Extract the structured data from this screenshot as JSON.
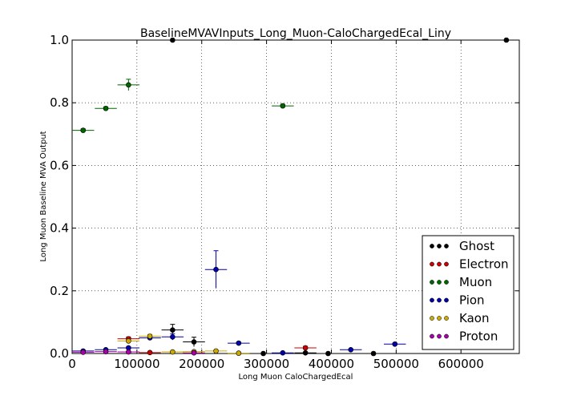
{
  "chart_data": {
    "type": "scatter",
    "title": "BaselineMVAVInputs_Long_Muon-CaloChargedEcal_Liny",
    "xlabel": "Long Muon CaloChargedEcal",
    "ylabel": "Long Muon Baseline MVA Output",
    "xlim": [
      0,
      690000
    ],
    "ylim": [
      0,
      1.0
    ],
    "xticks": [
      0,
      100000,
      200000,
      300000,
      400000,
      500000,
      600000
    ],
    "xtick_labels": [
      "0",
      "100000",
      "200000",
      "300000",
      "400000",
      "500000",
      "600000"
    ],
    "yticks": [
      0.0,
      0.2,
      0.4,
      0.6,
      0.8,
      1.0
    ],
    "ytick_labels": [
      "0.0",
      "0.2",
      "0.4",
      "0.6",
      "0.8",
      "1.0"
    ],
    "grid": true,
    "legend_position": "bottom-right",
    "series": [
      {
        "name": "Ghost",
        "color": "#000000",
        "points": [
          {
            "x": 155000,
            "y": 0.075,
            "xerr": 17000,
            "yerr": 0.018
          },
          {
            "x": 188000,
            "y": 0.037,
            "xerr": 17000,
            "yerr": 0.015
          },
          {
            "x": 155000,
            "y": 1.0,
            "xerr": 0,
            "yerr": 0
          },
          {
            "x": 670000,
            "y": 1.0,
            "xerr": 0,
            "yerr": 0
          },
          {
            "x": 295000,
            "y": 0.0,
            "xerr": 17000,
            "yerr": 0
          },
          {
            "x": 360000,
            "y": 0.002,
            "xerr": 17000,
            "yerr": 0
          },
          {
            "x": 395000,
            "y": 0.0,
            "xerr": 17000,
            "yerr": 0
          },
          {
            "x": 465000,
            "y": 0.0,
            "xerr": 17000,
            "yerr": 0
          }
        ]
      },
      {
        "name": "Electron",
        "color": "#cc0000",
        "points": [
          {
            "x": 87000,
            "y": 0.047,
            "xerr": 17000,
            "yerr": 0.006
          },
          {
            "x": 120000,
            "y": 0.003,
            "xerr": 17000,
            "yerr": 0.003
          },
          {
            "x": 360000,
            "y": 0.018,
            "xerr": 17000,
            "yerr": 0.005
          }
        ]
      },
      {
        "name": "Muon",
        "color": "#006600",
        "points": [
          {
            "x": 17000,
            "y": 0.712,
            "xerr": 17000,
            "yerr": 0.005
          },
          {
            "x": 52000,
            "y": 0.782,
            "xerr": 17000,
            "yerr": 0.005
          },
          {
            "x": 87000,
            "y": 0.857,
            "xerr": 17000,
            "yerr": 0.018
          },
          {
            "x": 325000,
            "y": 0.79,
            "xerr": 17000,
            "yerr": 0.005
          }
        ]
      },
      {
        "name": "Pion",
        "color": "#0000aa",
        "points": [
          {
            "x": 17000,
            "y": 0.008,
            "xerr": 17000,
            "yerr": 0.002
          },
          {
            "x": 52000,
            "y": 0.012,
            "xerr": 17000,
            "yerr": 0.002
          },
          {
            "x": 87000,
            "y": 0.018,
            "xerr": 17000,
            "yerr": 0.004
          },
          {
            "x": 120000,
            "y": 0.05,
            "xerr": 17000,
            "yerr": 0.006
          },
          {
            "x": 155000,
            "y": 0.053,
            "xerr": 17000,
            "yerr": 0.01
          },
          {
            "x": 222000,
            "y": 0.268,
            "xerr": 17000,
            "yerr": 0.06
          },
          {
            "x": 257000,
            "y": 0.033,
            "xerr": 17000,
            "yerr": 0.004
          },
          {
            "x": 325000,
            "y": 0.002,
            "xerr": 17000,
            "yerr": 0
          },
          {
            "x": 430000,
            "y": 0.012,
            "xerr": 17000,
            "yerr": 0.002
          },
          {
            "x": 498000,
            "y": 0.03,
            "xerr": 17000,
            "yerr": 0.003
          }
        ]
      },
      {
        "name": "Kaon",
        "color": "#ccaa00",
        "points": [
          {
            "x": 87000,
            "y": 0.04,
            "xerr": 17000,
            "yerr": 0.005
          },
          {
            "x": 120000,
            "y": 0.055,
            "xerr": 17000,
            "yerr": 0.006
          },
          {
            "x": 155000,
            "y": 0.005,
            "xerr": 17000,
            "yerr": 0.003
          },
          {
            "x": 188000,
            "y": 0.006,
            "xerr": 17000,
            "yerr": 0.003
          },
          {
            "x": 222000,
            "y": 0.008,
            "xerr": 17000,
            "yerr": 0.003
          },
          {
            "x": 257000,
            "y": 0.001,
            "xerr": 17000,
            "yerr": 0
          }
        ]
      },
      {
        "name": "Proton",
        "color": "#aa00aa",
        "points": [
          {
            "x": 17000,
            "y": 0.004,
            "xerr": 17000,
            "yerr": 0.002
          },
          {
            "x": 52000,
            "y": 0.006,
            "xerr": 17000,
            "yerr": 0.002
          },
          {
            "x": 87000,
            "y": 0.005,
            "xerr": 17000,
            "yerr": 0.002
          },
          {
            "x": 188000,
            "y": 0.002,
            "xerr": 17000,
            "yerr": 0.001
          }
        ]
      }
    ]
  }
}
